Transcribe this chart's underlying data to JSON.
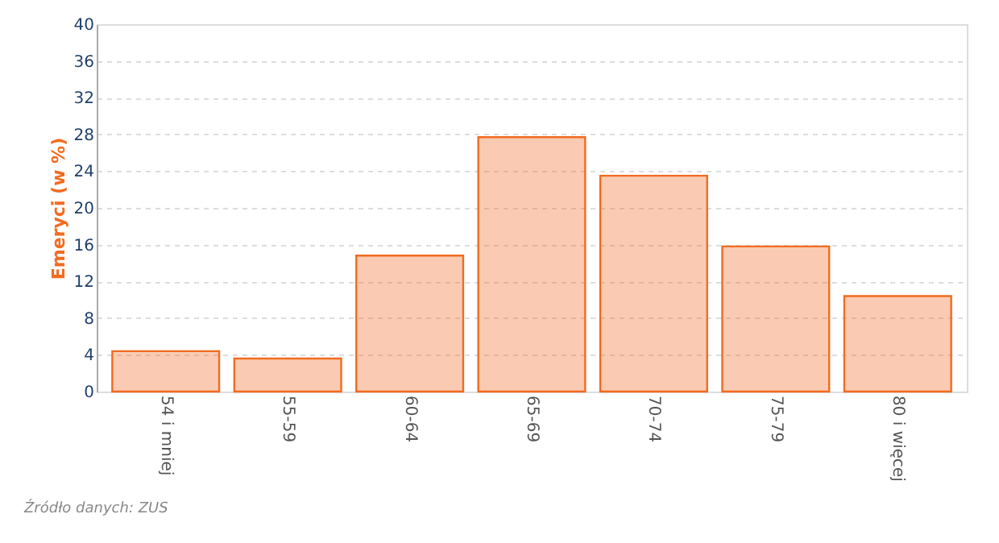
{
  "chart_data": {
    "type": "bar",
    "ylabel": "Emeryci (w %)",
    "categories": [
      "54 i mniej",
      "55-59",
      "60-64",
      "65-69",
      "70-74",
      "75-79",
      "80 i więcej"
    ],
    "values": [
      4.4,
      3.6,
      14.8,
      27.7,
      23.5,
      15.8,
      10.4
    ],
    "color": "#f26b21",
    "ylim": [
      0,
      40
    ],
    "yticks": [
      0,
      4,
      8,
      12,
      16,
      20,
      24,
      28,
      32,
      36,
      40
    ],
    "grid": "y",
    "annotations": [
      "Źródło danych: ZUS"
    ]
  }
}
